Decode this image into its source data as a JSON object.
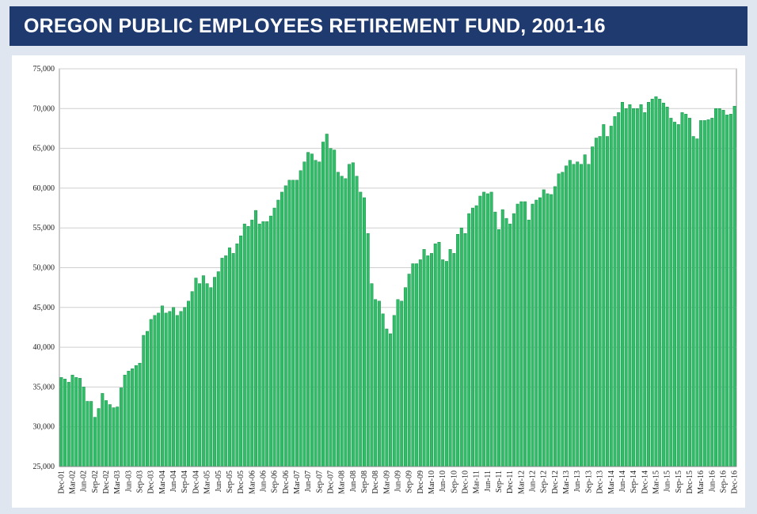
{
  "chart_data": {
    "type": "bar",
    "title": "OREGON PUBLIC EMPLOYEES RETIREMENT FUND, 2001-16",
    "color": "#2fbd68",
    "grid": true,
    "ylim": [
      25000,
      75000
    ],
    "yticks": [
      {
        "value": 25000,
        "label": "25,000"
      },
      {
        "value": 30000,
        "label": "30,000"
      },
      {
        "value": 35000,
        "label": "35,000"
      },
      {
        "value": 40000,
        "label": "40,000"
      },
      {
        "value": 45000,
        "label": "45,000"
      },
      {
        "value": 50000,
        "label": "50,000"
      },
      {
        "value": 55000,
        "label": "55,000"
      },
      {
        "value": 60000,
        "label": "60,000"
      },
      {
        "value": 65000,
        "label": "65,000"
      },
      {
        "value": 70000,
        "label": "70,000"
      },
      {
        "value": 75000,
        "label": "75,000"
      }
    ],
    "categories": [
      "Dec-01",
      null,
      null,
      "Mar-02",
      null,
      null,
      "Jun-02",
      null,
      null,
      "Sep-02",
      null,
      null,
      "Dec-02",
      null,
      null,
      "Mar-03",
      null,
      null,
      "Jun-03",
      null,
      null,
      "Sep-03",
      null,
      null,
      "Dec-03",
      null,
      null,
      "Mar-04",
      null,
      null,
      "Jun-04",
      null,
      null,
      "Sep-04",
      null,
      null,
      "Dec-04",
      null,
      null,
      "Mar-05",
      null,
      null,
      "Jun-05",
      null,
      null,
      "Sep-05",
      null,
      null,
      "Dec-05",
      null,
      null,
      "Mar-06",
      null,
      null,
      "Jun-06",
      null,
      null,
      "Sep-06",
      null,
      null,
      "Dec-06",
      null,
      null,
      "Mar-07",
      null,
      null,
      "Jun-07",
      null,
      null,
      "Sep-07",
      null,
      null,
      "Dec-07",
      null,
      null,
      "Mar-08",
      null,
      null,
      "Jun-08",
      null,
      null,
      "Sep-08",
      null,
      null,
      "Dec-08",
      null,
      null,
      "Mar-09",
      null,
      null,
      "Jun-09",
      null,
      null,
      "Sep-09",
      null,
      null,
      "Dec-09",
      null,
      null,
      "Mar-10",
      null,
      null,
      "Jun-10",
      null,
      null,
      "Sep-10",
      null,
      null,
      "Dec-10",
      null,
      null,
      "Mar-11",
      null,
      null,
      "Jun-11",
      null,
      null,
      "Sep-11",
      null,
      null,
      "Dec-11",
      null,
      null,
      "Mar-12",
      null,
      null,
      "Jun-12",
      null,
      null,
      "Sep-12",
      null,
      null,
      "Dec-12",
      null,
      null,
      "Mar-13",
      null,
      null,
      "Jun-13",
      null,
      null,
      "Sep-13",
      null,
      null,
      "Dec-13",
      null,
      null,
      "Mar-14",
      null,
      null,
      "Jun-14",
      null,
      null,
      "Sep-14",
      null,
      null,
      "Dec-14",
      null,
      null,
      "Mar-15",
      null,
      null,
      "Jun-15",
      null,
      null,
      "Sep-15",
      null,
      null,
      "Dec-15",
      null,
      null,
      "Mar-16",
      null,
      null,
      "Jun-16",
      null,
      null,
      "Sep-16",
      null,
      null,
      "Dec-16"
    ],
    "values": [
      36200,
      36000,
      35600,
      36500,
      36200,
      36100,
      35000,
      33200,
      33200,
      31200,
      32300,
      34200,
      33300,
      32800,
      32400,
      32500,
      34900,
      36500,
      37000,
      37300,
      37700,
      38000,
      41500,
      42000,
      43500,
      44000,
      44300,
      45200,
      44300,
      44500,
      45000,
      44000,
      44500,
      45000,
      45800,
      47000,
      48700,
      48000,
      49000,
      48000,
      47500,
      48800,
      49500,
      51200,
      51500,
      52500,
      51800,
      53000,
      54000,
      55500,
      55200,
      56000,
      57200,
      55500,
      55800,
      55800,
      56500,
      57500,
      58500,
      59500,
      60300,
      61000,
      61000,
      61000,
      62200,
      63300,
      64500,
      64300,
      63500,
      63300,
      65800,
      66800,
      65000,
      64800,
      62000,
      61500,
      61200,
      63000,
      63200,
      61500,
      59500,
      58800,
      54300,
      48000,
      46000,
      45800,
      44200,
      42300,
      41700,
      44000,
      46000,
      45800,
      47500,
      49200,
      50500,
      50500,
      51000,
      52300,
      51500,
      51800,
      53000,
      53200,
      51000,
      50800,
      52300,
      51800,
      54200,
      55000,
      54300,
      56800,
      57500,
      57800,
      59000,
      59500,
      59300,
      59500,
      57000,
      54800,
      57300,
      56200,
      55500,
      56800,
      58000,
      58300,
      58300,
      56000,
      58000,
      58500,
      58800,
      59800,
      59300,
      59200,
      60200,
      61800,
      62000,
      62800,
      63500,
      63000,
      63300,
      63000,
      64200,
      63000,
      65200,
      66300,
      66500,
      68000,
      66500,
      67800,
      69000,
      69500,
      70800,
      70000,
      70500,
      70000,
      70000,
      70500,
      69500,
      70800,
      71200,
      71500,
      71200,
      70700,
      70200,
      68800,
      68300,
      68000,
      69500,
      69300,
      68800,
      66500,
      66200,
      68500,
      68500,
      68600,
      68800,
      70000,
      70000,
      69800,
      69200,
      69300,
      70300
    ]
  }
}
